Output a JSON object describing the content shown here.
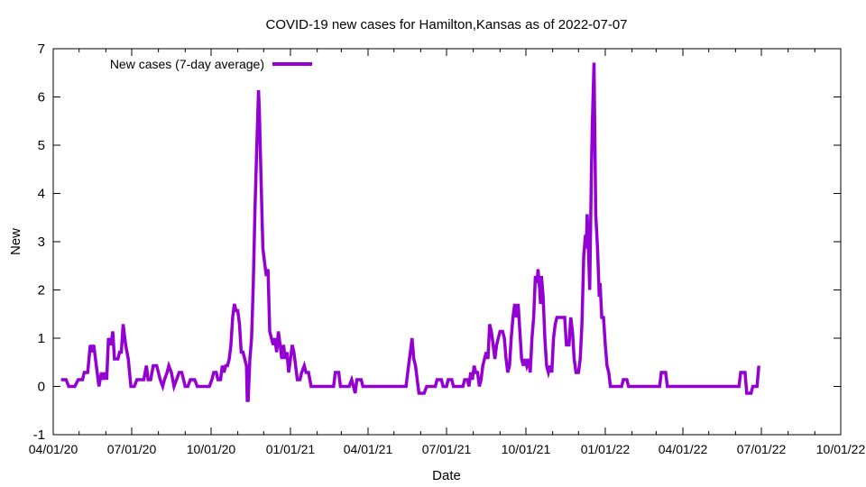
{
  "chart_data": {
    "type": "line",
    "title": "COVID-19 new cases for Hamilton,Kansas as of 2022-07-07",
    "xlabel": "Date",
    "ylabel": "New",
    "xlim": [
      "2020-04-01",
      "2022-10-01"
    ],
    "ylim": [
      -1,
      7
    ],
    "x_ticks": [
      "04/01/20",
      "07/01/20",
      "10/01/20",
      "01/01/21",
      "04/01/21",
      "07/01/21",
      "10/01/21",
      "01/01/22",
      "04/01/22",
      "07/01/22",
      "10/01/22"
    ],
    "x_tick_dates": [
      "2020-04-01",
      "2020-07-01",
      "2020-10-01",
      "2021-01-01",
      "2021-04-01",
      "2021-07-01",
      "2021-10-01",
      "2022-01-01",
      "2022-04-01",
      "2022-07-01",
      "2022-10-01"
    ],
    "y_ticks": [
      "-1",
      "0",
      "1",
      "2",
      "3",
      "4",
      "5",
      "6",
      "7"
    ],
    "grid": false,
    "legend_position": "top-left",
    "series": [
      {
        "name": "New cases (7-day average)",
        "color": "#9400d3",
        "points": [
          [
            "2020-04-10",
            0.14
          ],
          [
            "2020-04-16",
            0.14
          ],
          [
            "2020-04-19",
            0.0
          ],
          [
            "2020-04-26",
            0.0
          ],
          [
            "2020-04-30",
            0.14
          ],
          [
            "2020-05-05",
            0.14
          ],
          [
            "2020-05-07",
            0.29
          ],
          [
            "2020-05-11",
            0.29
          ],
          [
            "2020-05-14",
            0.86
          ],
          [
            "2020-05-16",
            0.71
          ],
          [
            "2020-05-18",
            0.86
          ],
          [
            "2020-05-21",
            0.43
          ],
          [
            "2020-05-24",
            0.0
          ],
          [
            "2020-05-27",
            0.29
          ],
          [
            "2020-05-29",
            0.14
          ],
          [
            "2020-05-31",
            0.29
          ],
          [
            "2020-06-02",
            0.14
          ],
          [
            "2020-06-04",
            1.0
          ],
          [
            "2020-06-07",
            0.86
          ],
          [
            "2020-06-09",
            1.14
          ],
          [
            "2020-06-11",
            0.57
          ],
          [
            "2020-06-15",
            0.57
          ],
          [
            "2020-06-17",
            0.71
          ],
          [
            "2020-06-19",
            0.71
          ],
          [
            "2020-06-21",
            1.29
          ],
          [
            "2020-06-24",
            0.86
          ],
          [
            "2020-06-27",
            0.57
          ],
          [
            "2020-06-30",
            0.0
          ],
          [
            "2020-07-04",
            0.0
          ],
          [
            "2020-07-07",
            0.14
          ],
          [
            "2020-07-15",
            0.14
          ],
          [
            "2020-07-18",
            0.43
          ],
          [
            "2020-07-20",
            0.14
          ],
          [
            "2020-07-23",
            0.14
          ],
          [
            "2020-07-26",
            0.43
          ],
          [
            "2020-07-30",
            0.43
          ],
          [
            "2020-08-03",
            0.14
          ],
          [
            "2020-08-06",
            0.0
          ],
          [
            "2020-08-08",
            0.14
          ],
          [
            "2020-08-11",
            0.29
          ],
          [
            "2020-08-13",
            0.43
          ],
          [
            "2020-08-16",
            0.29
          ],
          [
            "2020-08-19",
            0.0
          ],
          [
            "2020-08-22",
            0.14
          ],
          [
            "2020-08-25",
            0.29
          ],
          [
            "2020-08-28",
            0.29
          ],
          [
            "2020-09-01",
            0.0
          ],
          [
            "2020-09-04",
            0.0
          ],
          [
            "2020-09-07",
            0.14
          ],
          [
            "2020-09-12",
            0.14
          ],
          [
            "2020-09-15",
            0.0
          ],
          [
            "2020-09-29",
            0.0
          ],
          [
            "2020-10-02",
            0.14
          ],
          [
            "2020-10-04",
            0.29
          ],
          [
            "2020-10-07",
            0.29
          ],
          [
            "2020-10-09",
            0.14
          ],
          [
            "2020-10-12",
            0.14
          ],
          [
            "2020-10-14",
            0.43
          ],
          [
            "2020-10-16",
            0.29
          ],
          [
            "2020-10-18",
            0.43
          ],
          [
            "2020-10-20",
            0.43
          ],
          [
            "2020-10-22",
            0.57
          ],
          [
            "2020-10-24",
            0.86
          ],
          [
            "2020-10-26",
            1.43
          ],
          [
            "2020-10-28",
            1.71
          ],
          [
            "2020-10-30",
            1.57
          ],
          [
            "2020-11-01",
            1.57
          ],
          [
            "2020-11-03",
            1.29
          ],
          [
            "2020-11-05",
            0.71
          ],
          [
            "2020-11-07",
            0.71
          ],
          [
            "2020-11-09",
            0.57
          ],
          [
            "2020-11-11",
            0.43
          ],
          [
            "2020-11-12",
            -0.29
          ],
          [
            "2020-11-13",
            -0.29
          ],
          [
            "2020-11-15",
            0.57
          ],
          [
            "2020-11-17",
            1.0
          ],
          [
            "2020-11-19",
            2.14
          ],
          [
            "2020-11-21",
            3.71
          ],
          [
            "2020-11-23",
            5.0
          ],
          [
            "2020-11-25",
            6.14
          ],
          [
            "2020-11-26",
            5.71
          ],
          [
            "2020-11-28",
            4.29
          ],
          [
            "2020-11-30",
            2.86
          ],
          [
            "2020-12-02",
            2.57
          ],
          [
            "2020-12-04",
            2.29
          ],
          [
            "2020-12-06",
            2.43
          ],
          [
            "2020-12-08",
            1.14
          ],
          [
            "2020-12-10",
            1.0
          ],
          [
            "2020-12-12",
            0.86
          ],
          [
            "2020-12-14",
            1.0
          ],
          [
            "2020-12-16",
            0.71
          ],
          [
            "2020-12-18",
            1.14
          ],
          [
            "2020-12-20",
            0.86
          ],
          [
            "2020-12-22",
            0.57
          ],
          [
            "2020-12-24",
            0.86
          ],
          [
            "2020-12-26",
            0.57
          ],
          [
            "2020-12-28",
            0.71
          ],
          [
            "2020-12-30",
            0.29
          ],
          [
            "2021-01-01",
            0.57
          ],
          [
            "2021-01-03",
            0.86
          ],
          [
            "2021-01-05",
            0.71
          ],
          [
            "2021-01-07",
            0.43
          ],
          [
            "2021-01-09",
            0.14
          ],
          [
            "2021-01-12",
            0.14
          ],
          [
            "2021-01-14",
            0.29
          ],
          [
            "2021-01-17",
            0.43
          ],
          [
            "2021-01-19",
            0.29
          ],
          [
            "2021-01-22",
            0.29
          ],
          [
            "2021-01-25",
            0.0
          ],
          [
            "2021-02-20",
            0.0
          ],
          [
            "2021-02-22",
            0.29
          ],
          [
            "2021-02-26",
            0.29
          ],
          [
            "2021-02-28",
            0.0
          ],
          [
            "2021-03-10",
            0.0
          ],
          [
            "2021-03-13",
            0.14
          ],
          [
            "2021-03-15",
            0.0
          ],
          [
            "2021-03-17",
            -0.14
          ],
          [
            "2021-03-19",
            0.14
          ],
          [
            "2021-03-24",
            0.14
          ],
          [
            "2021-03-26",
            0.0
          ],
          [
            "2021-05-15",
            0.0
          ],
          [
            "2021-05-18",
            0.43
          ],
          [
            "2021-05-20",
            0.71
          ],
          [
            "2021-05-22",
            1.0
          ],
          [
            "2021-05-24",
            0.57
          ],
          [
            "2021-05-26",
            0.43
          ],
          [
            "2021-05-28",
            0.14
          ],
          [
            "2021-05-30",
            -0.14
          ],
          [
            "2021-06-05",
            -0.14
          ],
          [
            "2021-06-08",
            0.0
          ],
          [
            "2021-06-18",
            0.0
          ],
          [
            "2021-06-20",
            0.14
          ],
          [
            "2021-06-25",
            0.14
          ],
          [
            "2021-06-27",
            0.0
          ],
          [
            "2021-07-01",
            0.0
          ],
          [
            "2021-07-03",
            0.14
          ],
          [
            "2021-07-07",
            0.14
          ],
          [
            "2021-07-09",
            0.0
          ],
          [
            "2021-07-20",
            0.0
          ],
          [
            "2021-07-22",
            0.14
          ],
          [
            "2021-07-25",
            0.14
          ],
          [
            "2021-07-27",
            0.0
          ],
          [
            "2021-07-29",
            0.29
          ],
          [
            "2021-07-31",
            0.14
          ],
          [
            "2021-08-02",
            0.43
          ],
          [
            "2021-08-04",
            0.29
          ],
          [
            "2021-08-06",
            0.29
          ],
          [
            "2021-08-08",
            0.0
          ],
          [
            "2021-08-10",
            0.14
          ],
          [
            "2021-08-12",
            0.43
          ],
          [
            "2021-08-14",
            0.57
          ],
          [
            "2021-08-16",
            0.71
          ],
          [
            "2021-08-18",
            0.57
          ],
          [
            "2021-08-20",
            1.29
          ],
          [
            "2021-08-22",
            1.14
          ],
          [
            "2021-08-24",
            0.86
          ],
          [
            "2021-08-26",
            0.57
          ],
          [
            "2021-08-28",
            0.86
          ],
          [
            "2021-08-30",
            1.0
          ],
          [
            "2021-09-01",
            1.14
          ],
          [
            "2021-09-04",
            1.14
          ],
          [
            "2021-09-06",
            1.0
          ],
          [
            "2021-09-08",
            0.57
          ],
          [
            "2021-09-10",
            0.29
          ],
          [
            "2021-09-12",
            0.43
          ],
          [
            "2021-09-14",
            1.0
          ],
          [
            "2021-09-16",
            1.43
          ],
          [
            "2021-09-18",
            1.71
          ],
          [
            "2021-09-20",
            1.43
          ],
          [
            "2021-09-22",
            1.71
          ],
          [
            "2021-09-24",
            1.14
          ],
          [
            "2021-09-26",
            0.57
          ],
          [
            "2021-09-28",
            0.43
          ],
          [
            "2021-09-30",
            0.57
          ],
          [
            "2021-10-02",
            0.43
          ],
          [
            "2021-10-04",
            0.57
          ],
          [
            "2021-10-06",
            0.29
          ],
          [
            "2021-10-08",
            1.0
          ],
          [
            "2021-10-10",
            1.43
          ],
          [
            "2021-10-12",
            2.29
          ],
          [
            "2021-10-14",
            2.14
          ],
          [
            "2021-10-15",
            2.43
          ],
          [
            "2021-10-17",
            2.0
          ],
          [
            "2021-10-18",
            1.71
          ],
          [
            "2021-10-19",
            2.29
          ],
          [
            "2021-10-21",
            1.86
          ],
          [
            "2021-10-23",
            1.0
          ],
          [
            "2021-10-25",
            0.43
          ],
          [
            "2021-10-27",
            0.29
          ],
          [
            "2021-10-29",
            0.43
          ],
          [
            "2021-10-31",
            0.29
          ],
          [
            "2021-11-02",
            1.0
          ],
          [
            "2021-11-04",
            1.29
          ],
          [
            "2021-11-06",
            1.43
          ],
          [
            "2021-11-15",
            1.43
          ],
          [
            "2021-11-17",
            0.86
          ],
          [
            "2021-11-20",
            0.86
          ],
          [
            "2021-11-22",
            1.43
          ],
          [
            "2021-11-24",
            1.14
          ],
          [
            "2021-11-26",
            0.57
          ],
          [
            "2021-11-28",
            0.29
          ],
          [
            "2021-12-01",
            0.29
          ],
          [
            "2021-12-03",
            0.57
          ],
          [
            "2021-12-05",
            1.29
          ],
          [
            "2021-12-07",
            2.71
          ],
          [
            "2021-12-09",
            3.14
          ],
          [
            "2021-12-10",
            2.86
          ],
          [
            "2021-12-11",
            3.57
          ],
          [
            "2021-12-13",
            2.57
          ],
          [
            "2021-12-14",
            2.0
          ],
          [
            "2021-12-16",
            4.57
          ],
          [
            "2021-12-17",
            5.43
          ],
          [
            "2021-12-19",
            6.71
          ],
          [
            "2021-12-21",
            3.57
          ],
          [
            "2021-12-23",
            2.86
          ],
          [
            "2021-12-25",
            1.86
          ],
          [
            "2021-12-26",
            2.14
          ],
          [
            "2021-12-28",
            1.43
          ],
          [
            "2021-12-30",
            1.43
          ],
          [
            "2022-01-01",
            0.86
          ],
          [
            "2022-01-03",
            0.43
          ],
          [
            "2022-01-05",
            0.29
          ],
          [
            "2022-01-07",
            0.0
          ],
          [
            "2022-01-20",
            0.0
          ],
          [
            "2022-01-22",
            0.14
          ],
          [
            "2022-01-26",
            0.14
          ],
          [
            "2022-01-28",
            0.0
          ],
          [
            "2022-03-05",
            0.0
          ],
          [
            "2022-03-07",
            0.29
          ],
          [
            "2022-03-12",
            0.29
          ],
          [
            "2022-03-14",
            0.0
          ],
          [
            "2022-06-05",
            0.0
          ],
          [
            "2022-06-07",
            0.29
          ],
          [
            "2022-06-12",
            0.29
          ],
          [
            "2022-06-14",
            -0.14
          ],
          [
            "2022-06-19",
            -0.14
          ],
          [
            "2022-06-21",
            0.0
          ],
          [
            "2022-06-26",
            0.0
          ],
          [
            "2022-06-28",
            0.43
          ]
        ]
      }
    ]
  }
}
